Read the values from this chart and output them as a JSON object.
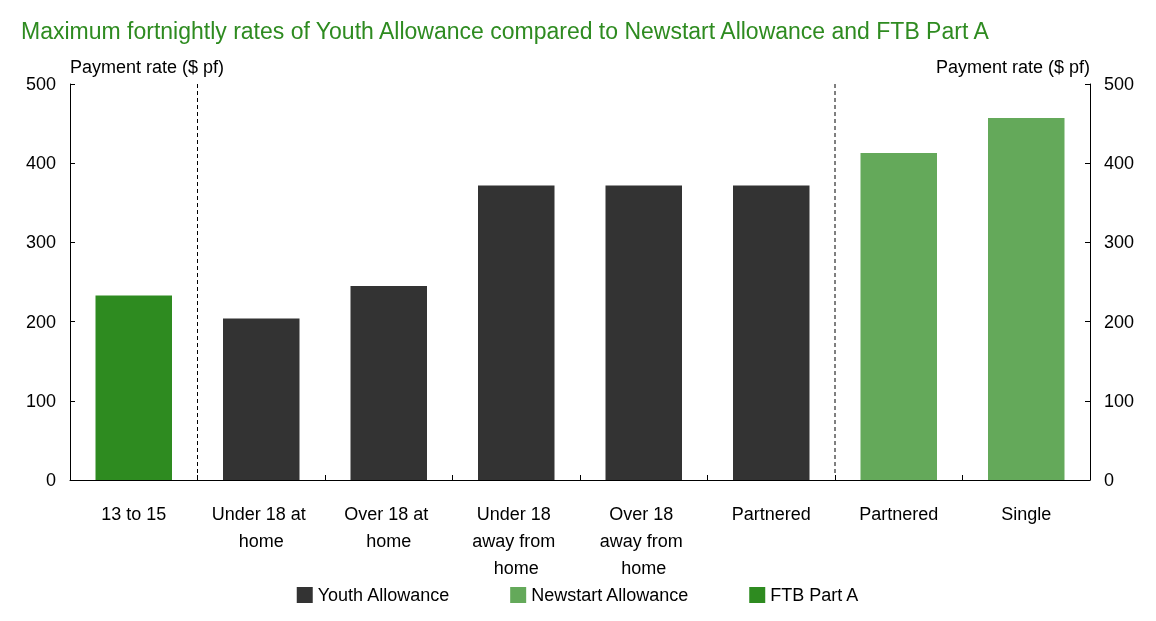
{
  "chart_data": {
    "type": "bar",
    "title": "Maximum fortnightly rates of Youth Allowance compared to Newstart Allowance and FTB Part A",
    "categories": [
      "13 to 15",
      "Under 18 at home",
      "Over 18 at home",
      "Under 18 away from home",
      "Over 18 away from home",
      "Partnered",
      "Partnered",
      "Single"
    ],
    "series": [
      {
        "name": "Youth Allowance",
        "color": "#333333",
        "values": [
          null,
          204,
          245,
          372,
          372,
          372,
          null,
          null
        ]
      },
      {
        "name": "Newstart Allowance",
        "color": "#64a95a",
        "values": [
          null,
          null,
          null,
          null,
          null,
          null,
          413,
          457
        ]
      },
      {
        "name": "FTB Part A",
        "color": "#2e8b20",
        "values": [
          233,
          null,
          null,
          null,
          null,
          null,
          null,
          null
        ]
      }
    ],
    "ylabel": "Payment rate ($ pf)",
    "y2label": "Payment rate ($ pf)",
    "ylim": [
      0,
      500
    ],
    "yticks": [
      0,
      100,
      200,
      300,
      400,
      500
    ],
    "y2lim": [
      0,
      500
    ],
    "y2ticks": [
      0,
      100,
      200,
      300,
      400,
      500
    ],
    "grid": false,
    "legend": "bottom"
  }
}
